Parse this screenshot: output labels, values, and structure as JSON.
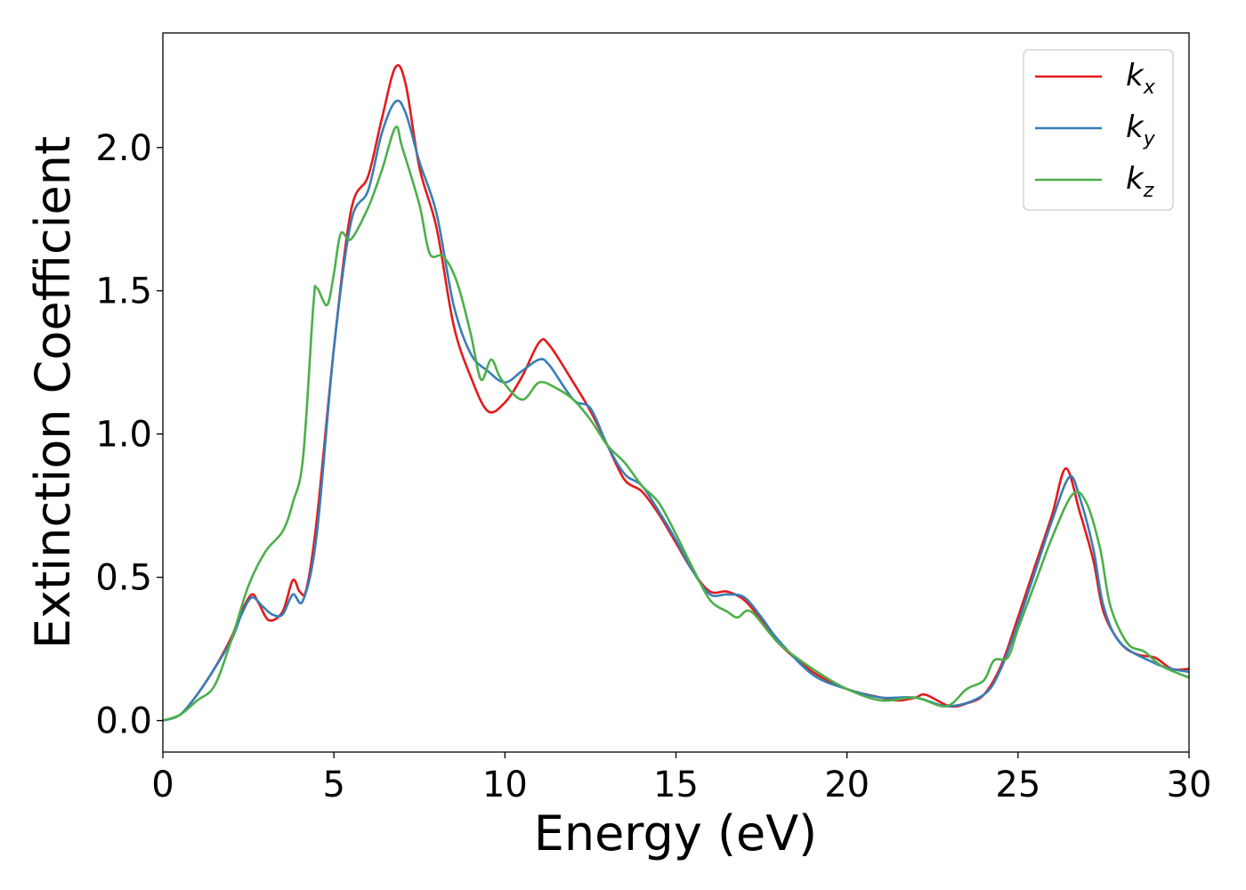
{
  "chart_data": {
    "type": "line",
    "xlabel": "Energy (eV)",
    "ylabel": "Extinction Coefficient",
    "xlim": [
      0,
      30
    ],
    "ylim": [
      -0.11,
      2.4
    ],
    "xticks": [
      0,
      5,
      10,
      15,
      20,
      25,
      30
    ],
    "xtick_labels": [
      "0",
      "5",
      "10",
      "15",
      "20",
      "25",
      "30"
    ],
    "yticks": [
      0.0,
      0.5,
      1.0,
      1.5,
      2.0
    ],
    "ytick_labels": [
      "0.0",
      "0.5",
      "1.0",
      "1.5",
      "2.0"
    ],
    "grid": false,
    "legend_position": "top-right",
    "series": [
      {
        "name": "k_x",
        "label_main": "k",
        "label_sub": "x",
        "color": "#e41a1c",
        "points": [
          [
            0,
            0
          ],
          [
            0.5,
            0.02
          ],
          [
            1,
            0.09
          ],
          [
            1.5,
            0.18
          ],
          [
            2,
            0.29
          ],
          [
            2.3,
            0.38
          ],
          [
            2.6,
            0.44
          ],
          [
            2.8,
            0.41
          ],
          [
            3.1,
            0.35
          ],
          [
            3.5,
            0.38
          ],
          [
            3.8,
            0.49
          ],
          [
            4,
            0.45
          ],
          [
            4.2,
            0.46
          ],
          [
            4.5,
            0.7
          ],
          [
            5,
            1.3
          ],
          [
            5.5,
            1.78
          ],
          [
            6,
            1.9
          ],
          [
            6.4,
            2.1
          ],
          [
            6.8,
            2.28
          ],
          [
            7.1,
            2.22
          ],
          [
            7.5,
            1.93
          ],
          [
            8,
            1.72
          ],
          [
            8.5,
            1.38
          ],
          [
            9,
            1.2
          ],
          [
            9.5,
            1.08
          ],
          [
            10,
            1.11
          ],
          [
            10.5,
            1.2
          ],
          [
            11,
            1.32
          ],
          [
            11.3,
            1.31
          ],
          [
            12,
            1.18
          ],
          [
            12.5,
            1.08
          ],
          [
            13,
            0.96
          ],
          [
            13.5,
            0.84
          ],
          [
            14,
            0.8
          ],
          [
            14.5,
            0.72
          ],
          [
            15,
            0.62
          ],
          [
            15.5,
            0.52
          ],
          [
            16,
            0.45
          ],
          [
            16.5,
            0.45
          ],
          [
            17,
            0.42
          ],
          [
            17.5,
            0.35
          ],
          [
            18,
            0.27
          ],
          [
            19,
            0.17
          ],
          [
            20,
            0.11
          ],
          [
            21,
            0.08
          ],
          [
            21.5,
            0.07
          ],
          [
            22,
            0.08
          ],
          [
            22.3,
            0.09
          ],
          [
            23,
            0.05
          ],
          [
            23.5,
            0.06
          ],
          [
            24,
            0.09
          ],
          [
            24.5,
            0.19
          ],
          [
            25,
            0.36
          ],
          [
            25.5,
            0.54
          ],
          [
            26,
            0.72
          ],
          [
            26.4,
            0.88
          ],
          [
            26.8,
            0.73
          ],
          [
            27.2,
            0.56
          ],
          [
            27.5,
            0.38
          ],
          [
            28,
            0.27
          ],
          [
            28.5,
            0.23
          ],
          [
            29,
            0.22
          ],
          [
            29.5,
            0.18
          ],
          [
            30,
            0.18
          ]
        ]
      },
      {
        "name": "k_y",
        "label_main": "k",
        "label_sub": "y",
        "color": "#377eb8",
        "points": [
          [
            0,
            0
          ],
          [
            0.5,
            0.02
          ],
          [
            1,
            0.09
          ],
          [
            1.5,
            0.18
          ],
          [
            2,
            0.28
          ],
          [
            2.3,
            0.37
          ],
          [
            2.6,
            0.43
          ],
          [
            2.9,
            0.4
          ],
          [
            3.2,
            0.37
          ],
          [
            3.5,
            0.37
          ],
          [
            3.8,
            0.44
          ],
          [
            4.1,
            0.42
          ],
          [
            4.5,
            0.65
          ],
          [
            5,
            1.3
          ],
          [
            5.5,
            1.74
          ],
          [
            6,
            1.85
          ],
          [
            6.4,
            2.05
          ],
          [
            6.8,
            2.16
          ],
          [
            7.1,
            2.12
          ],
          [
            7.5,
            1.95
          ],
          [
            8,
            1.77
          ],
          [
            8.5,
            1.45
          ],
          [
            9,
            1.28
          ],
          [
            9.5,
            1.22
          ],
          [
            10,
            1.18
          ],
          [
            10.5,
            1.22
          ],
          [
            11,
            1.26
          ],
          [
            11.3,
            1.24
          ],
          [
            12,
            1.12
          ],
          [
            12.5,
            1.09
          ],
          [
            13,
            0.96
          ],
          [
            13.5,
            0.86
          ],
          [
            14,
            0.82
          ],
          [
            14.5,
            0.73
          ],
          [
            15,
            0.63
          ],
          [
            15.5,
            0.52
          ],
          [
            16,
            0.44
          ],
          [
            16.5,
            0.44
          ],
          [
            17,
            0.43
          ],
          [
            17.5,
            0.36
          ],
          [
            18,
            0.28
          ],
          [
            19,
            0.16
          ],
          [
            20,
            0.11
          ],
          [
            21,
            0.08
          ],
          [
            22,
            0.08
          ],
          [
            23,
            0.05
          ],
          [
            24,
            0.09
          ],
          [
            24.5,
            0.18
          ],
          [
            25,
            0.34
          ],
          [
            25.5,
            0.52
          ],
          [
            26,
            0.7
          ],
          [
            26.5,
            0.85
          ],
          [
            26.8,
            0.78
          ],
          [
            27.2,
            0.6
          ],
          [
            27.5,
            0.4
          ],
          [
            28,
            0.27
          ],
          [
            29,
            0.2
          ],
          [
            29.5,
            0.18
          ],
          [
            30,
            0.17
          ]
        ]
      },
      {
        "name": "k_z",
        "label_main": "k",
        "label_sub": "z",
        "color": "#4daf4a",
        "points": [
          [
            0,
            0
          ],
          [
            0.5,
            0.02
          ],
          [
            1,
            0.07
          ],
          [
            1.5,
            0.12
          ],
          [
            2,
            0.28
          ],
          [
            2.5,
            0.47
          ],
          [
            3,
            0.59
          ],
          [
            3.5,
            0.66
          ],
          [
            3.8,
            0.76
          ],
          [
            4.1,
            0.92
          ],
          [
            4.4,
            1.45
          ],
          [
            4.5,
            1.51
          ],
          [
            4.8,
            1.45
          ],
          [
            5,
            1.56
          ],
          [
            5.2,
            1.7
          ],
          [
            5.5,
            1.68
          ],
          [
            6,
            1.79
          ],
          [
            6.4,
            1.92
          ],
          [
            6.8,
            2.07
          ],
          [
            7,
            2.0
          ],
          [
            7.5,
            1.8
          ],
          [
            7.8,
            1.63
          ],
          [
            8.2,
            1.62
          ],
          [
            8.6,
            1.53
          ],
          [
            9,
            1.35
          ],
          [
            9.3,
            1.19
          ],
          [
            9.6,
            1.26
          ],
          [
            9.9,
            1.19
          ],
          [
            10.5,
            1.12
          ],
          [
            11,
            1.18
          ],
          [
            11.5,
            1.16
          ],
          [
            12,
            1.12
          ],
          [
            12.5,
            1.05
          ],
          [
            13,
            0.96
          ],
          [
            13.5,
            0.9
          ],
          [
            14,
            0.82
          ],
          [
            14.5,
            0.76
          ],
          [
            15,
            0.65
          ],
          [
            15.5,
            0.53
          ],
          [
            16,
            0.42
          ],
          [
            16.5,
            0.38
          ],
          [
            16.8,
            0.36
          ],
          [
            17.2,
            0.38
          ],
          [
            18,
            0.27
          ],
          [
            19,
            0.18
          ],
          [
            20,
            0.11
          ],
          [
            21,
            0.07
          ],
          [
            22,
            0.08
          ],
          [
            22.9,
            0.05
          ],
          [
            23.5,
            0.11
          ],
          [
            24,
            0.14
          ],
          [
            24.3,
            0.21
          ],
          [
            24.7,
            0.22
          ],
          [
            25,
            0.32
          ],
          [
            25.5,
            0.48
          ],
          [
            26,
            0.64
          ],
          [
            26.6,
            0.79
          ],
          [
            27,
            0.76
          ],
          [
            27.4,
            0.6
          ],
          [
            27.7,
            0.4
          ],
          [
            28.2,
            0.27
          ],
          [
            28.7,
            0.24
          ],
          [
            29.2,
            0.19
          ],
          [
            30,
            0.15
          ]
        ]
      }
    ]
  }
}
